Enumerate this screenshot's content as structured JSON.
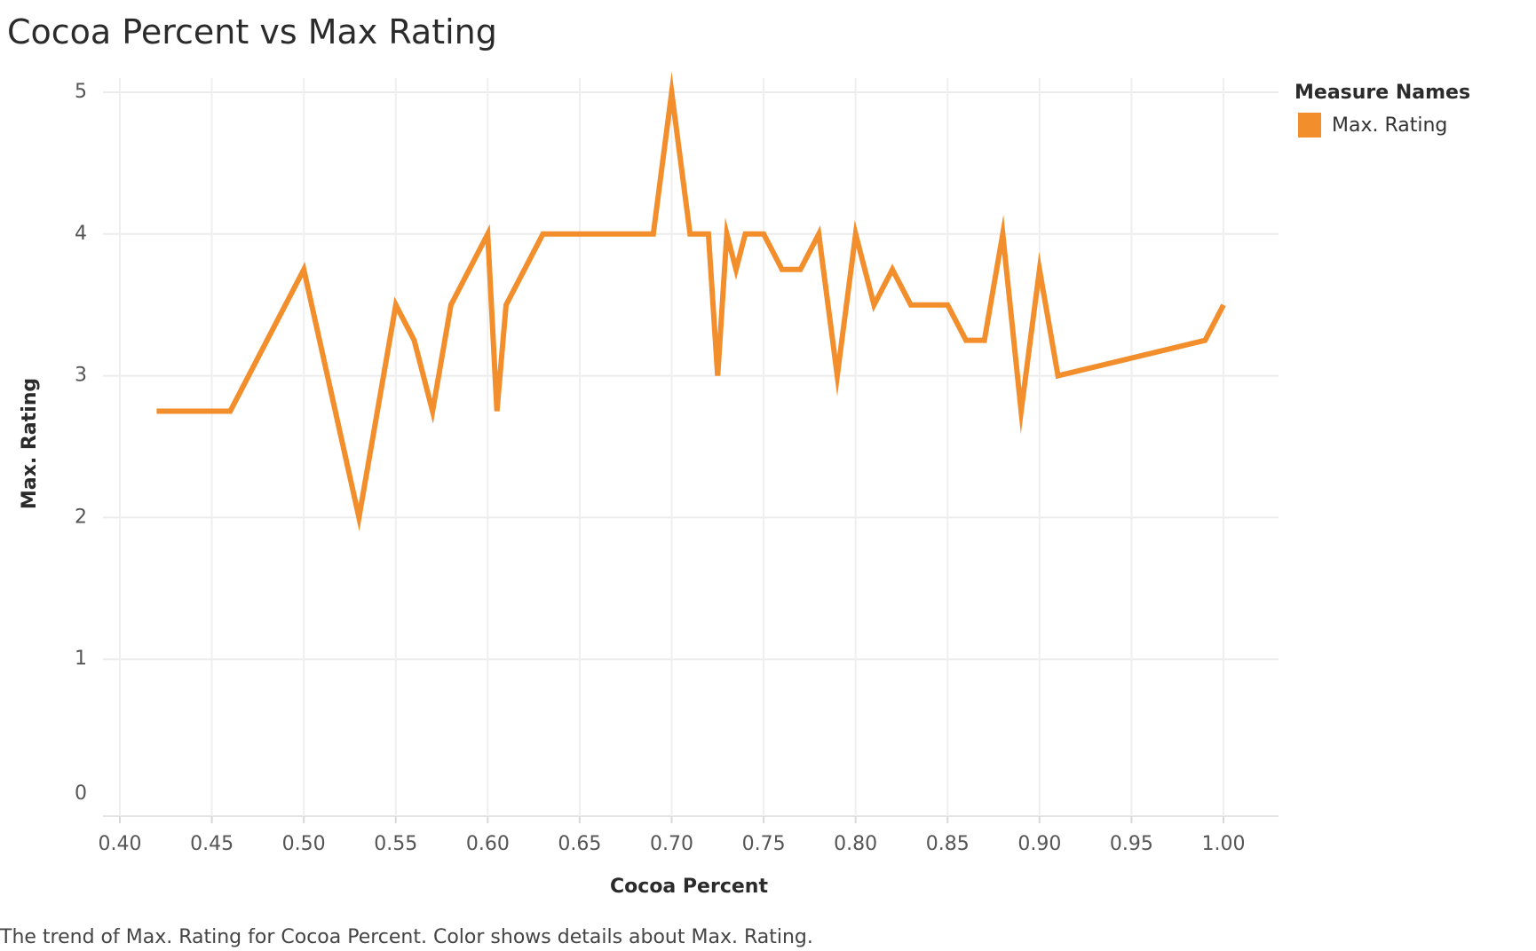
{
  "title": "Cocoa Percent vs Max Rating",
  "caption": "The trend of Max. Rating for Cocoa Percent.  Color shows details about Max. Rating.",
  "legend": {
    "title": "Measure Names",
    "items": [
      {
        "label": "Max. Rating",
        "color": "#f28e2b"
      }
    ]
  },
  "chart_data": {
    "type": "line",
    "xlabel": "Cocoa Percent",
    "ylabel": "Max. Rating",
    "xlim": [
      0.4,
      1.0
    ],
    "ylim": [
      0,
      5
    ],
    "x_ticks": [
      "0.40",
      "0.45",
      "0.50",
      "0.55",
      "0.60",
      "0.65",
      "0.70",
      "0.75",
      "0.80",
      "0.85",
      "0.90",
      "0.95",
      "1.00"
    ],
    "y_ticks": [
      "0",
      "1",
      "2",
      "3",
      "4",
      "5"
    ],
    "grid": true,
    "legend_position": "top-right",
    "series": [
      {
        "name": "Max. Rating",
        "color": "#f28e2b",
        "points": [
          [
            0.42,
            2.75
          ],
          [
            0.46,
            2.75
          ],
          [
            0.5,
            3.75
          ],
          [
            0.53,
            2.0
          ],
          [
            0.55,
            3.5
          ],
          [
            0.56,
            3.25
          ],
          [
            0.57,
            2.75
          ],
          [
            0.58,
            3.5
          ],
          [
            0.6,
            4.0
          ],
          [
            0.605,
            2.75
          ],
          [
            0.61,
            3.5
          ],
          [
            0.63,
            4.0
          ],
          [
            0.69,
            4.0
          ],
          [
            0.7,
            5.0
          ],
          [
            0.71,
            4.0
          ],
          [
            0.72,
            4.0
          ],
          [
            0.725,
            3.0
          ],
          [
            0.73,
            4.0
          ],
          [
            0.735,
            3.75
          ],
          [
            0.74,
            4.0
          ],
          [
            0.75,
            4.0
          ],
          [
            0.76,
            3.75
          ],
          [
            0.77,
            3.75
          ],
          [
            0.78,
            4.0
          ],
          [
            0.79,
            3.0
          ],
          [
            0.8,
            4.0
          ],
          [
            0.81,
            3.5
          ],
          [
            0.82,
            3.75
          ],
          [
            0.83,
            3.5
          ],
          [
            0.85,
            3.5
          ],
          [
            0.86,
            3.25
          ],
          [
            0.87,
            3.25
          ],
          [
            0.88,
            4.0
          ],
          [
            0.89,
            2.75
          ],
          [
            0.9,
            3.75
          ],
          [
            0.91,
            3.0
          ],
          [
            0.99,
            3.25
          ],
          [
            1.0,
            3.5
          ]
        ]
      }
    ]
  }
}
